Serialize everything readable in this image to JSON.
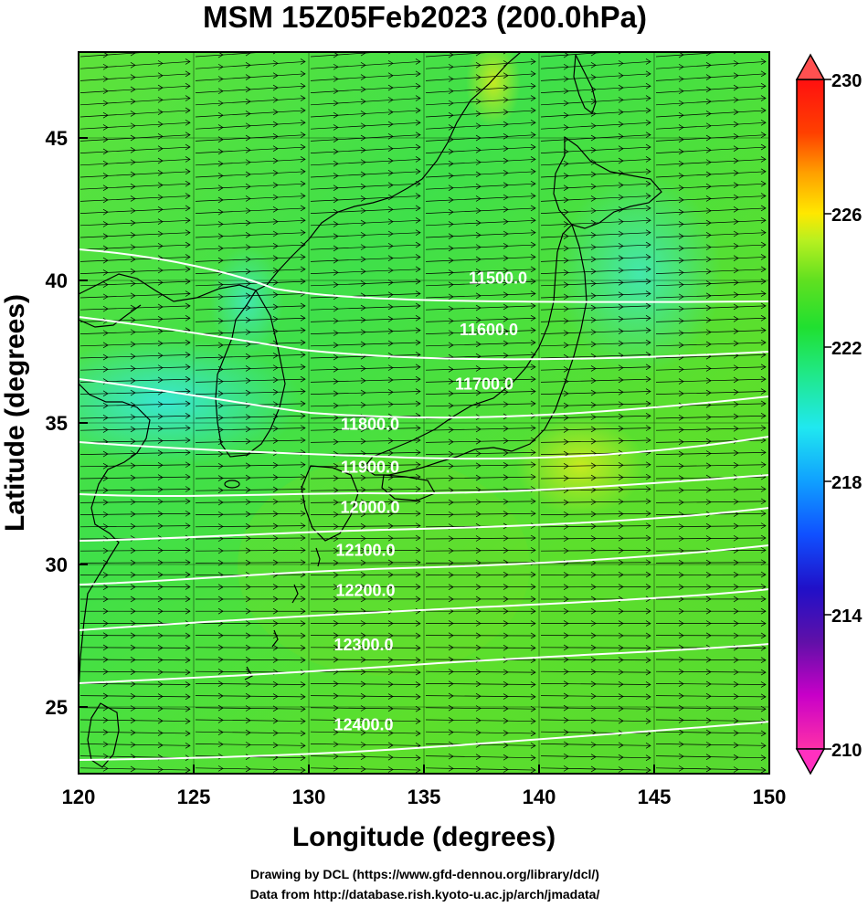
{
  "title": "MSM 15Z05Feb2023 (200.0hPa)",
  "xlabel": "Longitude (degrees)",
  "ylabel": "Latitude  (degrees)",
  "credits": [
    "Drawing by DCL (https://www.gfd-dennou.org/library/dcl/)",
    "Data from http://database.rish.kyoto-u.ac.jp/arch/jmadata/"
  ],
  "map": {
    "lon_range": [
      120,
      150
    ],
    "lat_range": [
      22.4,
      47.6
    ],
    "lon_ticks": [
      "120",
      "125",
      "130",
      "135",
      "140",
      "145",
      "150"
    ],
    "lat_ticks": [
      "25",
      "30",
      "35",
      "40",
      "45"
    ],
    "field": "temperature (K), shaded",
    "vectors": "wind arrows, predominantly westerly",
    "land_outline_color": "#000000",
    "grid_color": "#000000"
  },
  "chart_data": {
    "type": "heatmap",
    "contours": [
      {
        "label": "11500.0",
        "lat": 39.7
      },
      {
        "label": "11600.0",
        "lat": 37.9
      },
      {
        "label": "11700.0",
        "lat": 36.0
      },
      {
        "label": "11800.0",
        "lat": 34.6
      },
      {
        "label": "11900.0",
        "lat": 33.1
      },
      {
        "label": "12000.0",
        "lat": 31.7
      },
      {
        "label": "12100.0",
        "lat": 30.2
      },
      {
        "label": "12200.0",
        "lat": 28.8
      },
      {
        "label": "12300.0",
        "lat": 26.9
      },
      {
        "label": "12400.0",
        "lat": 24.1
      }
    ],
    "colorbar": {
      "ticks": [
        "230",
        "226",
        "222",
        "218",
        "214",
        "210"
      ],
      "range": [
        210,
        230
      ],
      "colors": [
        "#ff3aa0",
        "#c000c0",
        "#6000a0",
        "#2020c0",
        "#0060ff",
        "#00c0ff",
        "#20f0e0",
        "#20e070",
        "#20e020",
        "#70e020",
        "#c0f020",
        "#ffe000",
        "#ff9000",
        "#ff4000",
        "#ff0000",
        "#ff5050"
      ]
    }
  }
}
